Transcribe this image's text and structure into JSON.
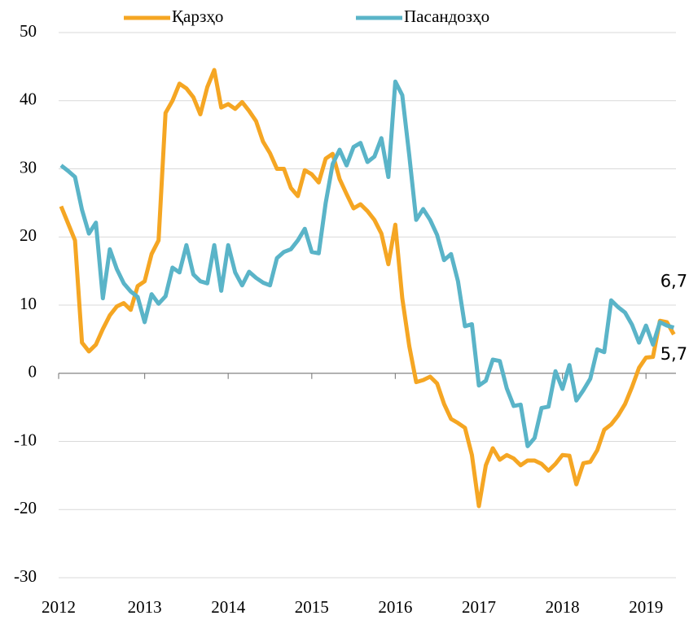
{
  "chart_data": {
    "type": "line",
    "categories": [
      "2012",
      null,
      null,
      null,
      null,
      null,
      null,
      null,
      null,
      null,
      null,
      null,
      "2013",
      null,
      null,
      null,
      null,
      null,
      null,
      null,
      null,
      null,
      null,
      null,
      "2014",
      null,
      null,
      null,
      null,
      null,
      null,
      null,
      null,
      null,
      null,
      null,
      "2015",
      null,
      null,
      null,
      null,
      null,
      null,
      null,
      null,
      null,
      null,
      null,
      "2016",
      null,
      null,
      null,
      null,
      null,
      null,
      null,
      null,
      null,
      null,
      null,
      "2017",
      null,
      null,
      null,
      null,
      null,
      null,
      null,
      null,
      null,
      null,
      null,
      "2018",
      null,
      null,
      null,
      null,
      null,
      null,
      null,
      null,
      null,
      null,
      null,
      "2019",
      null,
      null,
      null,
      null
    ],
    "series": [
      {
        "name": "Қарзҳо",
        "color": "#f5a623",
        "values": [
          24.5,
          22,
          19.5,
          4.5,
          3.2,
          4.2,
          6.5,
          8.5,
          9.8,
          10.3,
          9.3,
          12.8,
          13.5,
          17.5,
          19.5,
          38.2,
          40,
          42.5,
          41.8,
          40.5,
          38,
          42,
          44.5,
          39,
          39.5,
          38.8,
          39.8,
          38.5,
          37,
          34,
          32.3,
          30,
          30,
          27.2,
          26,
          29.8,
          29.2,
          28,
          31.5,
          32.2,
          28.5,
          26.3,
          24.2,
          24.8,
          23.8,
          22.5,
          20.5,
          16,
          21.8,
          11,
          4,
          -1.3,
          -1,
          -0.5,
          -1.5,
          -4.5,
          -6.7,
          -7.3,
          -8,
          -12,
          -19.5,
          -13.5,
          -11,
          -12.7,
          -12,
          -12.5,
          -13.5,
          -12.8,
          -12.8,
          -13.3,
          -14.3,
          -13.3,
          -12,
          -12.1,
          -16.3,
          -13.2,
          -13,
          -11.3,
          -8.3,
          -7.5,
          -6.2,
          -4.5,
          -2,
          0.8,
          2.3,
          2.4,
          7.7,
          7.5,
          5.7
        ],
        "value_labels": [
          null,
          null,
          null,
          null,
          null,
          null,
          null,
          null,
          null,
          null,
          null,
          null,
          null,
          null,
          null,
          null,
          null,
          null,
          null,
          null,
          null,
          null,
          null,
          null,
          null,
          null,
          null,
          null,
          null,
          null,
          null,
          null,
          null,
          null,
          null,
          null,
          null,
          null,
          null,
          null,
          null,
          null,
          null,
          null,
          null,
          null,
          null,
          null,
          null,
          null,
          null,
          null,
          null,
          null,
          null,
          null,
          null,
          null,
          null,
          null,
          null,
          null,
          null,
          null,
          null,
          null,
          null,
          null,
          null,
          null,
          null,
          null,
          null,
          null,
          null,
          null,
          null,
          null,
          null,
          null,
          null,
          null,
          null,
          null,
          null,
          null,
          null,
          null,
          "5,7"
        ]
      },
      {
        "name": "Пасандозҳо",
        "color": "#5ab4c8",
        "values": [
          30.5,
          29.7,
          28.8,
          24,
          20.5,
          22.1,
          11,
          18.2,
          15.3,
          13.2,
          12,
          11.2,
          7.5,
          11.6,
          10.2,
          11.3,
          15.5,
          14.8,
          18.8,
          14.5,
          13.5,
          13.2,
          18.8,
          12.1,
          18.8,
          14.8,
          12.9,
          14.9,
          14,
          13.3,
          12.9,
          16.9,
          17.8,
          18.2,
          19.5,
          21.2,
          17.8,
          17.6,
          25,
          30.7,
          32.8,
          30.5,
          33.2,
          33.8,
          31,
          31.8,
          34.5,
          28.8,
          42.8,
          40.8,
          32,
          22.5,
          24.1,
          22.5,
          20.3,
          16.6,
          17.5,
          13.5,
          6.9,
          7.2,
          -1.8,
          -1.1,
          2,
          1.8,
          -2.2,
          -4.8,
          -4.6,
          -10.7,
          -9.5,
          -5.1,
          -4.9,
          0.3,
          -2.3,
          1.2,
          -4,
          -2.5,
          -0.8,
          3.5,
          3.1,
          10.7,
          9.7,
          8.9,
          7.1,
          4.5,
          7,
          4.2,
          7.5,
          7,
          6.7
        ],
        "value_labels": [
          null,
          null,
          null,
          null,
          null,
          null,
          null,
          null,
          null,
          null,
          null,
          null,
          null,
          null,
          null,
          null,
          null,
          null,
          null,
          null,
          null,
          null,
          null,
          null,
          null,
          null,
          null,
          null,
          null,
          null,
          null,
          null,
          null,
          null,
          null,
          null,
          null,
          null,
          null,
          null,
          null,
          null,
          null,
          null,
          null,
          null,
          null,
          null,
          null,
          null,
          null,
          null,
          null,
          null,
          null,
          null,
          null,
          null,
          null,
          null,
          null,
          null,
          null,
          null,
          null,
          null,
          null,
          null,
          null,
          null,
          null,
          null,
          null,
          null,
          null,
          null,
          null,
          null,
          null,
          null,
          null,
          null,
          null,
          null,
          null,
          null,
          null,
          null,
          "6,7"
        ]
      }
    ],
    "ylim": [
      -30,
      50
    ],
    "yticks": [
      -30,
      -20,
      -10,
      0,
      10,
      20,
      30,
      40,
      50
    ],
    "grid": true,
    "legend": "top"
  }
}
